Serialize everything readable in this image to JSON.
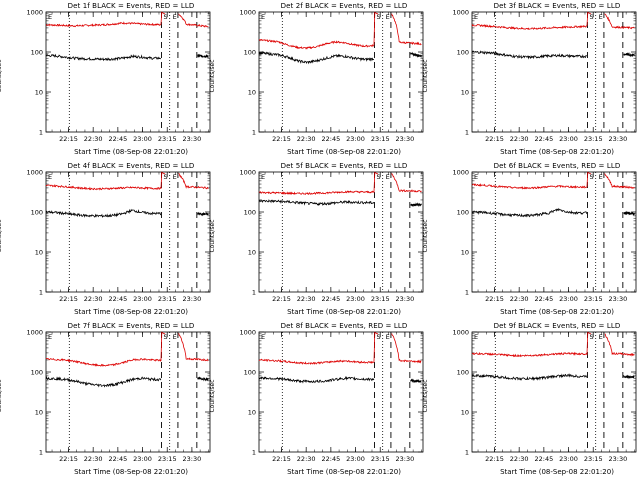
{
  "chart_data": [
    {
      "type": "line",
      "title": "Det 1f BLACK = Events, RED = LLD",
      "ylabel": "Counts/sec",
      "xlabel": "Start Time (08-Sep-08 22:01:20)",
      "x_ticks": [
        "22:15",
        "22:30",
        "22:45",
        "23:00",
        "23:15",
        "23:30"
      ],
      "yscale": "log",
      "ylim": [
        1,
        1000
      ],
      "y_ticks": [
        "1",
        "10",
        "100",
        "1000"
      ],
      "markers": [
        "S",
        "E"
      ],
      "series": [
        {
          "color": "#dd0000",
          "values": [
            480,
            470,
            460,
            450,
            460,
            470,
            480,
            500,
            530,
            520,
            500,
            490,
            480,
            990,
            900,
            520,
            430
          ]
        },
        {
          "color": "#000000",
          "values": [
            82,
            80,
            75,
            70,
            68,
            67,
            66,
            67,
            70,
            78,
            75,
            70,
            70,
            0,
            0,
            80,
            78
          ]
        }
      ]
    },
    {
      "type": "line",
      "title": "Det 2f BLACK = Events, RED = LLD",
      "ylabel": "Counts/sec",
      "xlabel": "Start Time (08-Sep-08 22:01:20)",
      "x_ticks": [
        "22:15",
        "22:30",
        "22:45",
        "23:00",
        "23:15",
        "23:30"
      ],
      "yscale": "log",
      "ylim": [
        1,
        1000
      ],
      "y_ticks": [
        "1",
        "10",
        "100",
        "1000"
      ],
      "markers": [
        "S",
        "E"
      ],
      "series": [
        {
          "color": "#dd0000",
          "values": [
            200,
            190,
            180,
            150,
            130,
            125,
            135,
            160,
            180,
            170,
            150,
            140,
            145,
            980,
            900,
            180,
            160
          ]
        },
        {
          "color": "#000000",
          "values": [
            95,
            90,
            85,
            75,
            60,
            55,
            60,
            70,
            80,
            78,
            70,
            65,
            68,
            0,
            0,
            90,
            80
          ]
        }
      ]
    },
    {
      "type": "line",
      "title": "Det 3f BLACK = Events, RED = LLD",
      "ylabel": "Counts/sec",
      "xlabel": "Start Time (08-Sep-08 22:01:20)",
      "x_ticks": [
        "22:15",
        "22:30",
        "22:45",
        "23:00",
        "23:15",
        "23:30"
      ],
      "yscale": "log",
      "ylim": [
        1,
        1000
      ],
      "y_ticks": [
        "1",
        "10",
        "100",
        "1000"
      ],
      "markers": [
        "S",
        "E"
      ],
      "series": [
        {
          "color": "#dd0000",
          "values": [
            470,
            460,
            440,
            420,
            400,
            390,
            380,
            390,
            400,
            410,
            420,
            430,
            440,
            980,
            900,
            430,
            400
          ]
        },
        {
          "color": "#000000",
          "values": [
            100,
            98,
            95,
            88,
            80,
            76,
            74,
            76,
            80,
            82,
            80,
            78,
            78,
            0,
            0,
            88,
            85
          ]
        }
      ]
    },
    {
      "type": "line",
      "title": "Det 4f BLACK = Events, RED = LLD",
      "ylabel": "Counts/sec",
      "xlabel": "Start Time (08-Sep-08 22:01:20)",
      "x_ticks": [
        "22:15",
        "22:30",
        "22:45",
        "23:00",
        "23:15",
        "23:30"
      ],
      "yscale": "log",
      "ylim": [
        1,
        1000
      ],
      "y_ticks": [
        "1",
        "10",
        "100",
        "1000"
      ],
      "markers": [
        "S",
        "E"
      ],
      "series": [
        {
          "color": "#dd0000",
          "values": [
            460,
            450,
            430,
            410,
            390,
            380,
            380,
            390,
            400,
            410,
            400,
            390,
            390,
            980,
            900,
            440,
            400
          ]
        },
        {
          "color": "#000000",
          "values": [
            100,
            97,
            92,
            86,
            82,
            80,
            80,
            82,
            90,
            110,
            98,
            92,
            92,
            0,
            0,
            90,
            88
          ]
        }
      ]
    },
    {
      "type": "line",
      "title": "Det 5f BLACK = Events, RED = LLD",
      "ylabel": "Counts/sec",
      "xlabel": "Start Time (08-Sep-08 22:01:20)",
      "x_ticks": [
        "22:15",
        "22:30",
        "22:45",
        "23:00",
        "23:15",
        "23:30"
      ],
      "yscale": "log",
      "ylim": [
        1,
        1000
      ],
      "y_ticks": [
        "1",
        "10",
        "100",
        "1000"
      ],
      "markers": [
        "S",
        "E"
      ],
      "series": [
        {
          "color": "#dd0000",
          "values": [
            310,
            305,
            300,
            295,
            290,
            290,
            295,
            300,
            310,
            320,
            320,
            315,
            315,
            980,
            900,
            350,
            330
          ]
        },
        {
          "color": "#000000",
          "values": [
            190,
            188,
            185,
            180,
            172,
            165,
            160,
            162,
            170,
            178,
            175,
            172,
            170,
            0,
            0,
            150,
            155
          ]
        }
      ]
    },
    {
      "type": "line",
      "title": "Det 6f BLACK = Events, RED = LLD",
      "ylabel": "Counts/sec",
      "xlabel": "Start Time (08-Sep-08 22:01:20)",
      "x_ticks": [
        "22:15",
        "22:30",
        "22:45",
        "23:00",
        "23:15",
        "23:30"
      ],
      "yscale": "log",
      "ylim": [
        1,
        1000
      ],
      "y_ticks": [
        "1",
        "10",
        "100",
        "1000"
      ],
      "markers": [
        "S",
        "E"
      ],
      "series": [
        {
          "color": "#dd0000",
          "values": [
            480,
            470,
            450,
            430,
            410,
            400,
            400,
            410,
            430,
            440,
            430,
            420,
            420,
            980,
            900,
            450,
            410
          ]
        },
        {
          "color": "#000000",
          "values": [
            100,
            98,
            94,
            88,
            84,
            82,
            82,
            86,
            95,
            115,
            100,
            95,
            95,
            0,
            0,
            95,
            90
          ]
        }
      ]
    },
    {
      "type": "line",
      "title": "Det 7f BLACK = Events, RED = LLD",
      "ylabel": "Counts/sec",
      "xlabel": "Start Time (08-Sep-08 22:01:20)",
      "x_ticks": [
        "22:15",
        "22:30",
        "22:45",
        "23:00",
        "23:15",
        "23:30"
      ],
      "yscale": "log",
      "ylim": [
        1,
        1000
      ],
      "y_ticks": [
        "1",
        "10",
        "100",
        "1000"
      ],
      "markers": [
        "S",
        "E"
      ],
      "series": [
        {
          "color": "#dd0000",
          "values": [
            210,
            205,
            200,
            185,
            165,
            150,
            145,
            150,
            170,
            200,
            210,
            200,
            195,
            980,
            900,
            220,
            200
          ]
        },
        {
          "color": "#000000",
          "values": [
            70,
            68,
            65,
            60,
            52,
            48,
            46,
            48,
            55,
            65,
            70,
            66,
            64,
            0,
            0,
            70,
            65
          ]
        }
      ]
    },
    {
      "type": "line",
      "title": "Det 8f BLACK = Events, RED = LLD",
      "ylabel": "Counts/sec",
      "xlabel": "Start Time (08-Sep-08 22:01:20)",
      "x_ticks": [
        "22:15",
        "22:30",
        "22:45",
        "23:00",
        "23:15",
        "23:30"
      ],
      "yscale": "log",
      "ylim": [
        1,
        1000
      ],
      "y_ticks": [
        "1",
        "10",
        "100",
        "1000"
      ],
      "markers": [
        "S",
        "E"
      ],
      "series": [
        {
          "color": "#dd0000",
          "values": [
            200,
            195,
            190,
            180,
            170,
            165,
            168,
            175,
            185,
            190,
            180,
            175,
            175,
            980,
            900,
            200,
            180
          ]
        },
        {
          "color": "#000000",
          "values": [
            72,
            70,
            68,
            64,
            60,
            58,
            58,
            60,
            65,
            70,
            68,
            66,
            66,
            0,
            0,
            60,
            58
          ]
        }
      ]
    },
    {
      "type": "line",
      "title": "Det 9f BLACK = Events, RED = LLD",
      "ylabel": "Counts/sec",
      "xlabel": "Start Time (08-Sep-08 22:01:20)",
      "x_ticks": [
        "22:15",
        "22:30",
        "22:45",
        "23:00",
        "23:15",
        "23:30"
      ],
      "yscale": "log",
      "ylim": [
        1,
        1000
      ],
      "y_ticks": [
        "1",
        "10",
        "100",
        "1000"
      ],
      "markers": [
        "S",
        "E"
      ],
      "series": [
        {
          "color": "#dd0000",
          "values": [
            290,
            285,
            280,
            270,
            260,
            255,
            258,
            265,
            275,
            285,
            290,
            285,
            285,
            980,
            900,
            300,
            270
          ]
        },
        {
          "color": "#000000",
          "values": [
            82,
            80,
            78,
            74,
            70,
            68,
            68,
            70,
            74,
            80,
            82,
            78,
            78,
            0,
            0,
            78,
            74
          ]
        }
      ]
    }
  ]
}
